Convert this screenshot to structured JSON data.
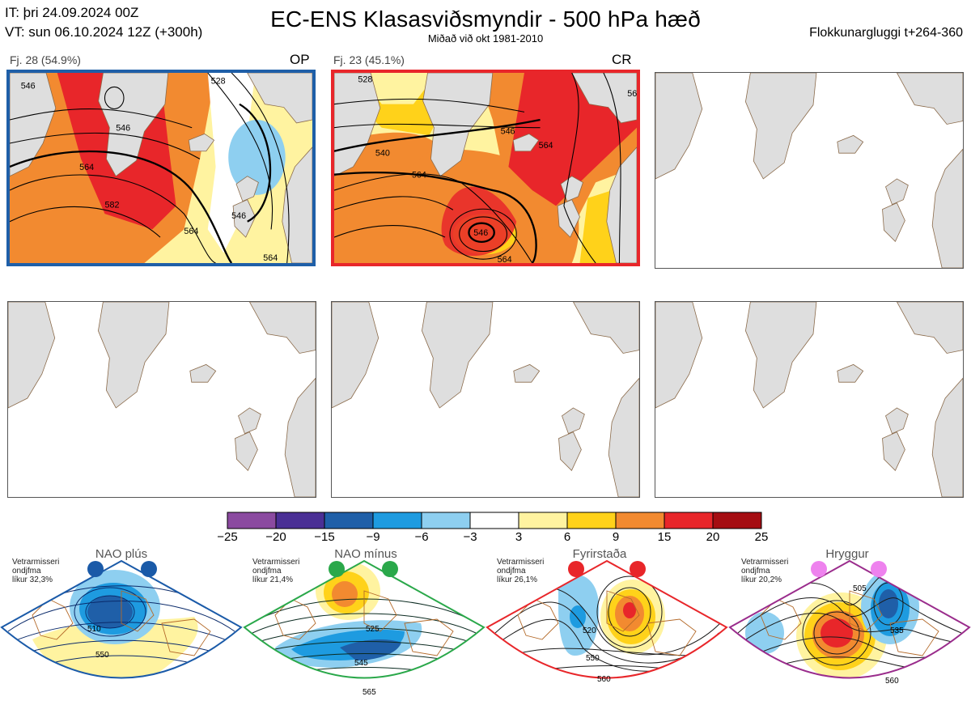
{
  "header": {
    "it_line": "IT: þri 24.09.2024 00Z",
    "vt_line": "VT: sun 06.10.2024 12Z  (+300h)",
    "title": "EC-ENS Klasasviðsmyndir - 500 hPa hæð",
    "subtitle": "Miðað við okt 1981-2010",
    "window": "Flokkunargluggi t+264-360"
  },
  "clusters": [
    {
      "label": "Fj. 28 (54.9%)",
      "tag": "OP",
      "border_color": "#1f5fa8",
      "contours": [
        "546",
        "528",
        "564",
        "582",
        "546",
        "564",
        "564",
        "546"
      ]
    },
    {
      "label": "Fj. 23 (45.1%)",
      "tag": "CR",
      "border_color": "#e8262a",
      "contours": [
        "528",
        "546",
        "540",
        "564",
        "564",
        "564",
        "546",
        "564"
      ]
    }
  ],
  "colorbar": {
    "ticks": [
      "−25",
      "−20",
      "−15",
      "−9",
      "−6",
      "−3",
      "3",
      "6",
      "9",
      "15",
      "20",
      "25"
    ],
    "colors": [
      "#8b4aa0",
      "#4a2f95",
      "#1f5fa8",
      "#1e9be0",
      "#8ecff0",
      "#ffffff",
      "#fff3a0",
      "#ffd21a",
      "#f28a30",
      "#e8262a",
      "#a50d12"
    ]
  },
  "regimes": [
    {
      "name": "NAO plús",
      "meta": [
        "Vetrarmisseri",
        "ondjfma",
        "líkur 32,3%"
      ],
      "color": "#1a5aa8",
      "dot_color": "#1a5aa8",
      "labels": [
        "510",
        "550"
      ]
    },
    {
      "name": "NAO mínus",
      "meta": [
        "Vetrarmisseri",
        "ondjfma",
        "líkur 21,4%"
      ],
      "color": "#2aa84a",
      "dot_color": "#2aa84a",
      "labels": [
        "525",
        "545",
        "565"
      ]
    },
    {
      "name": "Fyrirstaða",
      "meta": [
        "Vetrarmisseri",
        "ondjfma",
        "líkur 26,1%"
      ],
      "color": "#e8262a",
      "dot_color": "#e8262a",
      "labels": [
        "520",
        "550",
        "560"
      ]
    },
    {
      "name": "Hryggur",
      "meta": [
        "Vetrarmisseri",
        "ondjfma",
        "líkur 20,2%"
      ],
      "color": "#9a2c8c",
      "dot_color": "#ee82ee",
      "labels": [
        "505",
        "535",
        "560"
      ]
    }
  ]
}
